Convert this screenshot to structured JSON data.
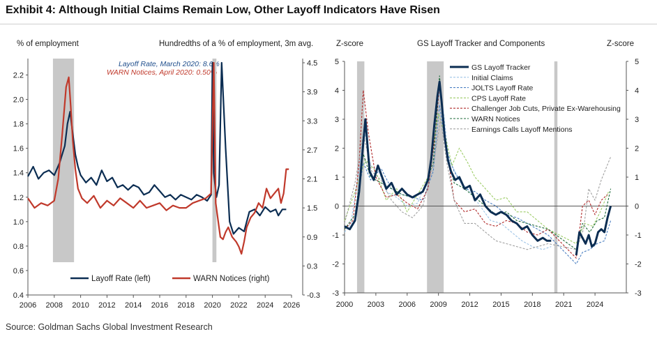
{
  "title": "Exhibit 4: Although Initial Claims Remain Low, Other Layoff Indicators Have Risen",
  "source": "Source: Goldman Sachs Global Investment Research",
  "colors": {
    "navy": "#0b2d52",
    "red": "#c0392b",
    "recession": "#c8c8c8",
    "lightblue": "#9cc3e6",
    "blue": "#4a7fc1",
    "lightgreen": "#9ccc65",
    "darkred": "#b02a2a",
    "darkgreen": "#1e6b3a",
    "gray": "#a0a0a0"
  },
  "chart_data": [
    {
      "type": "line",
      "ylabel_left": "% of employment",
      "ylabel_right": "Hundredths of a % of employment, 3m avg.",
      "xlim": [
        2006,
        2026
      ],
      "ylim_left": [
        0.4,
        2.3
      ],
      "ylim_right": [
        -0.3,
        4.5
      ],
      "x_ticks": [
        "2006",
        "2008",
        "2010",
        "2012",
        "2014",
        "2016",
        "2018",
        "2020",
        "2022",
        "2024",
        "2026"
      ],
      "y_ticks_left": [
        "0.4",
        "0.6",
        "0.8",
        "1.0",
        "1.2",
        "1.4",
        "1.6",
        "1.8",
        "2.0",
        "2.2"
      ],
      "y_ticks_right": [
        "-0.3",
        "0.3",
        "0.9",
        "1.5",
        "2.1",
        "2.7",
        "3.3",
        "3.9",
        "4.5"
      ],
      "annotations": [
        "Layoff Rate, March 2020: 8.6%",
        "WARN Notices, April 2020: 0.50%"
      ],
      "recessions": [
        [
          2007.9,
          2009.5
        ],
        [
          2020.0,
          2020.3
        ]
      ],
      "legend": [
        "Layoff Rate (left)",
        "WARN Notices (right)"
      ],
      "series": [
        {
          "name": "Layoff Rate (left)",
          "axis": "left",
          "x": [
            2006,
            2006.4,
            2006.8,
            2007.2,
            2007.6,
            2008,
            2008.4,
            2008.8,
            2009.0,
            2009.2,
            2009.4,
            2009.6,
            2009.8,
            2010,
            2010.4,
            2010.8,
            2011.2,
            2011.6,
            2012,
            2012.4,
            2012.8,
            2013.2,
            2013.6,
            2014,
            2014.4,
            2014.8,
            2015.2,
            2015.6,
            2016,
            2016.4,
            2016.8,
            2017.2,
            2017.6,
            2018,
            2018.4,
            2018.8,
            2019.2,
            2019.6,
            2019.9,
            2020.0,
            2020.1,
            2020.3,
            2020.5,
            2020.7,
            2021.0,
            2021.3,
            2021.6,
            2022.0,
            2022.4,
            2022.8,
            2023.2,
            2023.6,
            2024.0,
            2024.4,
            2024.8,
            2025.0,
            2025.3,
            2025.6
          ],
          "values": [
            1.37,
            1.45,
            1.35,
            1.4,
            1.42,
            1.38,
            1.48,
            1.62,
            1.8,
            1.9,
            1.72,
            1.55,
            1.45,
            1.38,
            1.32,
            1.36,
            1.3,
            1.42,
            1.33,
            1.36,
            1.28,
            1.3,
            1.26,
            1.3,
            1.28,
            1.22,
            1.24,
            1.3,
            1.25,
            1.2,
            1.22,
            1.18,
            1.22,
            1.2,
            1.18,
            1.22,
            1.2,
            1.17,
            1.22,
            2.3,
            1.4,
            1.2,
            1.3,
            2.3,
            1.6,
            1.0,
            0.9,
            0.95,
            0.92,
            1.08,
            1.1,
            1.05,
            1.12,
            1.08,
            1.1,
            1.05,
            1.1,
            1.1
          ]
        },
        {
          "name": "WARN Notices (right)",
          "axis": "right",
          "x": [
            2006,
            2006.5,
            2007,
            2007.5,
            2008,
            2008.3,
            2008.6,
            2008.9,
            2009.1,
            2009.25,
            2009.4,
            2009.6,
            2009.8,
            2010.1,
            2010.5,
            2011,
            2011.5,
            2012,
            2012.5,
            2013,
            2013.5,
            2014,
            2014.5,
            2015,
            2015.5,
            2016,
            2016.5,
            2017,
            2017.5,
            2018,
            2018.5,
            2019,
            2019.5,
            2019.9,
            2020.1,
            2020.25,
            2020.6,
            2020.8,
            2021,
            2021.2,
            2021.5,
            2021.8,
            2022.0,
            2022.2,
            2022.4,
            2022.6,
            2022.9,
            2023.2,
            2023.5,
            2023.8,
            2024.1,
            2024.4,
            2024.7,
            2025.0,
            2025.2,
            2025.4,
            2025.6,
            2025.8
          ],
          "values": [
            1.7,
            1.5,
            1.6,
            1.55,
            1.65,
            2.1,
            3.0,
            4.0,
            4.2,
            3.6,
            2.9,
            2.3,
            1.9,
            1.7,
            1.6,
            1.75,
            1.5,
            1.65,
            1.55,
            1.7,
            1.6,
            1.5,
            1.65,
            1.5,
            1.55,
            1.6,
            1.45,
            1.55,
            1.5,
            1.5,
            1.6,
            1.65,
            1.7,
            1.8,
            4.5,
            1.6,
            0.9,
            0.85,
            1.0,
            1.1,
            0.9,
            0.8,
            0.7,
            0.55,
            0.8,
            1.1,
            1.3,
            1.4,
            1.6,
            1.5,
            1.9,
            1.7,
            1.8,
            1.9,
            1.6,
            1.8,
            2.3,
            2.3
          ]
        }
      ]
    },
    {
      "type": "line",
      "title": "GS Layoff Tracker and Components",
      "ylabel_left": "Z-score",
      "ylabel_right": "Z-score",
      "xlim": [
        2000,
        2027
      ],
      "ylim": [
        -3,
        5
      ],
      "x_ticks": [
        "2000",
        "2003",
        "2006",
        "2009",
        "2012",
        "2015",
        "2018",
        "2021",
        "2024"
      ],
      "y_ticks": [
        "-3",
        "-2",
        "-1",
        "0",
        "1",
        "2",
        "3",
        "4",
        "5"
      ],
      "recessions": [
        [
          2001.2,
          2001.9
        ],
        [
          2007.9,
          2009.5
        ],
        [
          2020.1,
          2020.4
        ]
      ],
      "legend": [
        "GS Layoff Tracker",
        "Initial Claims",
        "JOLTS Layoff Rate",
        "CPS Layoff Rate",
        "Challenger Job Cuts, Private Ex-Warehousing",
        "WARN Notices",
        "Earnings Calls Layoff Mentions"
      ],
      "series": [
        {
          "name": "GS Layoff Tracker",
          "x": [
            2000,
            2000.5,
            2001,
            2001.4,
            2001.8,
            2002.0,
            2002.4,
            2002.8,
            2003.2,
            2003.6,
            2004,
            2004.5,
            2005,
            2005.5,
            2006,
            2006.5,
            2007,
            2007.5,
            2008,
            2008.3,
            2008.6,
            2008.9,
            2009.1,
            2009.3,
            2009.6,
            2009.9,
            2010.2,
            2010.6,
            2011,
            2011.5,
            2012,
            2012.5,
            2013,
            2013.5,
            2014,
            2014.5,
            2015,
            2015.5,
            2016,
            2016.5,
            2017,
            2017.5,
            2018,
            2018.5,
            2019,
            2019.4,
            2019.8
          ],
          "values": [
            -0.7,
            -0.8,
            -0.5,
            0.5,
            2.2,
            3.0,
            1.2,
            0.9,
            1.4,
            1.0,
            0.6,
            0.8,
            0.4,
            0.6,
            0.4,
            0.3,
            0.4,
            0.5,
            0.9,
            1.6,
            2.8,
            3.8,
            4.3,
            3.6,
            2.4,
            1.6,
            1.2,
            0.9,
            1.0,
            0.6,
            0.7,
            0.2,
            0.4,
            0.0,
            -0.2,
            -0.3,
            -0.2,
            -0.3,
            -0.5,
            -0.6,
            -0.8,
            -0.7,
            -1.0,
            -1.2,
            -1.1,
            -1.2,
            -1.2
          ]
        },
        {
          "name": "GS Layoff Tracker (2022-2025)",
          "x": [
            2022.2,
            2022.5,
            2022.8,
            2023.1,
            2023.4,
            2023.7,
            2024.0,
            2024.3,
            2024.6,
            2024.9,
            2025.2,
            2025.5
          ],
          "values": [
            -1.7,
            -0.9,
            -1.1,
            -1.3,
            -1.0,
            -1.4,
            -1.3,
            -0.9,
            -0.8,
            -0.9,
            -0.4,
            0.0
          ]
        },
        {
          "name": "Initial Claims",
          "x": [
            2000,
            2000.6,
            2001.2,
            2001.9,
            2002.5,
            2003.3,
            2004,
            2005,
            2006,
            2007,
            2008,
            2008.6,
            2009.1,
            2009.5,
            2010,
            2011,
            2012,
            2013,
            2014,
            2015,
            2016,
            2017,
            2018,
            2019,
            2019.8
          ],
          "values": [
            -0.9,
            -0.6,
            0.8,
            2.6,
            1.4,
            1.2,
            0.5,
            0.3,
            0.0,
            0.1,
            1.0,
            2.5,
            3.9,
            3.2,
            1.6,
            0.9,
            0.5,
            0.0,
            -0.5,
            -0.6,
            -0.9,
            -1.2,
            -1.4,
            -1.5,
            -1.4
          ]
        },
        {
          "name": "JOLTS Layoff Rate",
          "x": [
            2001,
            2001.8,
            2002.5,
            2003.5,
            2004.5,
            2005.5,
            2006.5,
            2007.5,
            2008.5,
            2009.1,
            2009.7,
            2010.5,
            2011.5,
            2012.5,
            2013.5,
            2014.5,
            2015.5,
            2016.5,
            2017.5,
            2018.5,
            2019.5,
            2022.2,
            2022.8,
            2023.5,
            2024.2,
            2024.9,
            2025.5
          ],
          "values": [
            -0.4,
            1.5,
            0.9,
            1.3,
            0.6,
            0.4,
            0.3,
            0.2,
            1.2,
            3.5,
            2.0,
            1.2,
            0.6,
            0.5,
            0.2,
            0.0,
            -0.3,
            -0.4,
            -0.6,
            -0.8,
            -1.0,
            -2.0,
            -1.6,
            -1.5,
            -1.3,
            -1.2,
            -0.5
          ]
        },
        {
          "name": "CPS Layoff Rate",
          "x": [
            2000,
            2001,
            2002,
            2003,
            2004,
            2005,
            2006,
            2007,
            2008,
            2009,
            2009.6,
            2010.3,
            2011,
            2011.8,
            2012.5,
            2013.5,
            2014.5,
            2015.5,
            2016.5,
            2017.5,
            2018.5,
            2019.5,
            2022.2,
            2023,
            2023.8,
            2024.5,
            2025.3
          ],
          "values": [
            -0.5,
            0.5,
            1.6,
            1.2,
            0.2,
            0.6,
            -0.2,
            0.4,
            1.0,
            3.2,
            2.5,
            1.4,
            2.0,
            1.5,
            1.0,
            0.6,
            0.2,
            0.3,
            -0.2,
            -0.2,
            -0.5,
            -0.8,
            -1.3,
            -0.6,
            -0.7,
            -0.2,
            0.5
          ]
        },
        {
          "name": "Challenger Job Cuts, Private Ex-Warehousing",
          "x": [
            2000,
            2000.8,
            2001.4,
            2001.8,
            2002.3,
            2003,
            2004,
            2005,
            2006,
            2007,
            2008,
            2008.7,
            2009.1,
            2009.6,
            2010.5,
            2011.5,
            2012.5,
            2013.5,
            2014.5,
            2015.5,
            2016.5,
            2017.5,
            2018.5,
            2019.5,
            2022.2,
            2022.8,
            2023.4,
            2024,
            2024.6,
            2025.2
          ],
          "values": [
            -0.8,
            -0.5,
            1.5,
            4.0,
            2.5,
            1.0,
            0.3,
            0.4,
            0.1,
            -0.1,
            0.6,
            2.5,
            4.2,
            2.5,
            0.2,
            -0.2,
            -0.1,
            -0.6,
            -0.7,
            -0.5,
            -0.6,
            -0.9,
            -1.0,
            -0.8,
            -1.8,
            0.0,
            0.2,
            -0.3,
            0.2,
            0.4
          ]
        },
        {
          "name": "WARN Notices",
          "x": [
            2000,
            2001,
            2001.8,
            2002.5,
            2003.5,
            2004.5,
            2005.5,
            2006.5,
            2007.5,
            2008.5,
            2009.1,
            2009.7,
            2010.5,
            2011.5,
            2012.5,
            2013.5,
            2014.5,
            2015.5,
            2016.5,
            2017.5,
            2018.5,
            2019.5,
            2022.2,
            2022.8,
            2023.5,
            2024.2,
            2024.9,
            2025.5
          ],
          "values": [
            -0.8,
            -0.3,
            1.8,
            1.0,
            0.8,
            0.6,
            0.4,
            0.3,
            0.5,
            1.5,
            4.5,
            2.0,
            0.8,
            0.6,
            0.3,
            0.0,
            -0.3,
            -0.2,
            -0.5,
            -0.6,
            -0.7,
            -0.8,
            -1.5,
            -0.6,
            -0.9,
            -0.5,
            -0.4,
            0.6
          ]
        },
        {
          "name": "Earnings Calls Layoff Mentions",
          "x": [
            2000,
            2001,
            2001.8,
            2002.6,
            2003.5,
            2004.5,
            2005.5,
            2006.5,
            2007.5,
            2008.5,
            2009.2,
            2009.8,
            2010.5,
            2011.5,
            2012.5,
            2013.5,
            2014.5,
            2015.5,
            2016.5,
            2017.5,
            2018.5,
            2019.5,
            2022.2,
            2022.9,
            2023.4,
            2024.0,
            2024.6,
            2025.5
          ],
          "values": [
            -0.6,
            0.8,
            2.5,
            1.2,
            0.9,
            0.2,
            -0.2,
            -0.4,
            0.0,
            1.4,
            3.0,
            1.5,
            0.2,
            -0.6,
            -0.6,
            -0.9,
            -1.2,
            -1.3,
            -1.4,
            -1.5,
            -1.4,
            -1.3,
            -1.5,
            -0.8,
            0.6,
            0.2,
            0.9,
            1.7
          ]
        }
      ]
    }
  ]
}
